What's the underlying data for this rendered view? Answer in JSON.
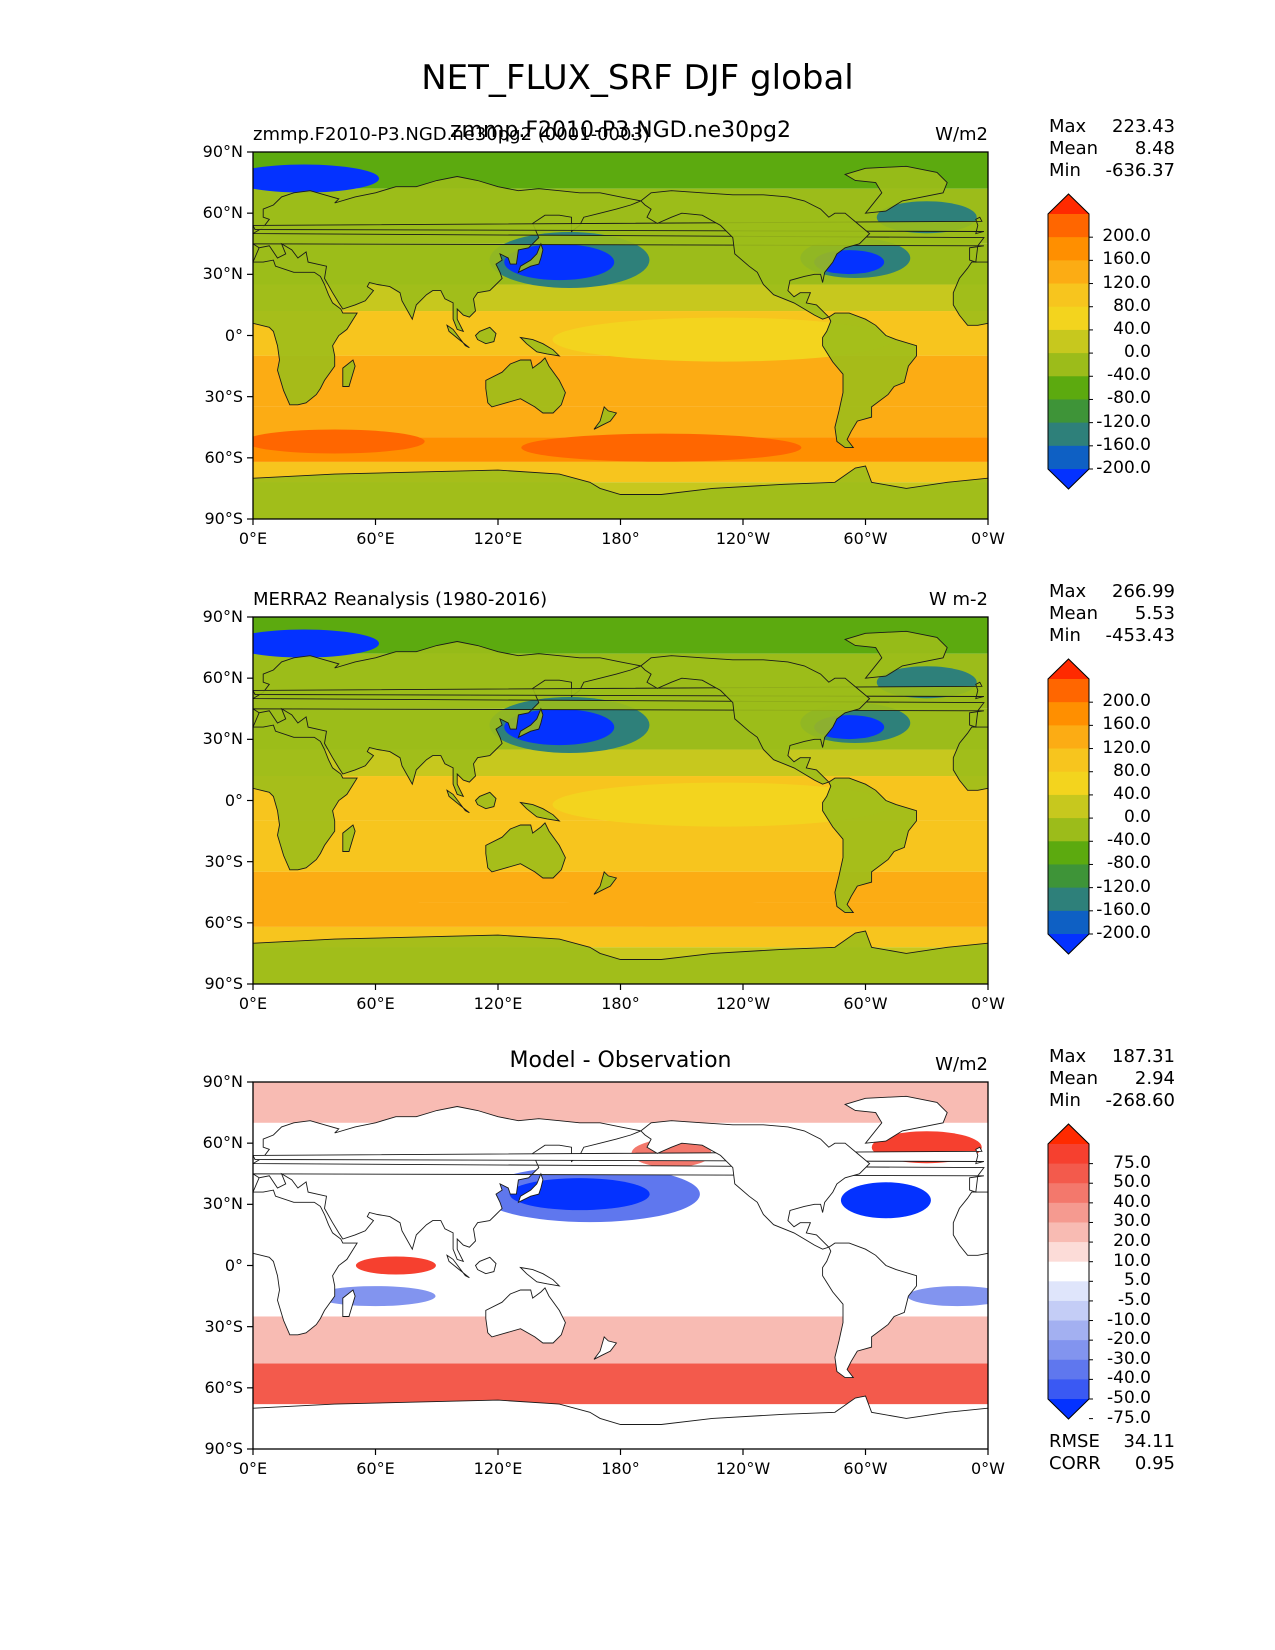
{
  "title": "NET_FLUX_SRF DJF global",
  "x_ticks": [
    "0°E",
    "60°E",
    "120°E",
    "180°",
    "120°W",
    "60°W",
    "0°W"
  ],
  "y_ticks": [
    "90°N",
    "60°N",
    "30°N",
    "0°",
    "30°S",
    "60°S",
    "90°S"
  ],
  "panels": [
    {
      "id": "test",
      "title_left": "zmmp.F2010-P3.NGD.ne30pg2 (0001-0003)",
      "title_center": "zmmp.F2010-P3.NGD.ne30pg2",
      "units": "W/m2",
      "stats": {
        "max_label": "Max",
        "max": "223.43",
        "mean_label": "Mean",
        "mean": "8.48",
        "min_label": "Min",
        "min": "-636.37"
      },
      "colorbar": {
        "labels": [
          "200.0",
          "160.0",
          "120.0",
          "80.0",
          "40.0",
          "0.0",
          "-40.0",
          "-80.0",
          "-120.0",
          "-160.0",
          "-200.0"
        ],
        "colors": [
          "#ff2a00",
          "#ff6600",
          "#ff8f00",
          "#fcac14",
          "#f7c51e",
          "#f3d41e",
          "#c7c81e",
          "#9cbc1a",
          "#5caa0f",
          "#3e9438",
          "#2e807a",
          "#0e60c4",
          "#0432ff"
        ]
      }
    },
    {
      "id": "reference",
      "title_left": "MERRA2 Reanalysis (1980-2016)",
      "title_center": "",
      "units": "W m-2",
      "stats": {
        "max_label": "Max",
        "max": "266.99",
        "mean_label": "Mean",
        "mean": "5.53",
        "min_label": "Min",
        "min": "-453.43"
      },
      "colorbar": {
        "labels": [
          "200.0",
          "160.0",
          "120.0",
          "80.0",
          "40.0",
          "0.0",
          "-40.0",
          "-80.0",
          "-120.0",
          "-160.0",
          "-200.0"
        ],
        "colors": [
          "#ff2a00",
          "#ff6600",
          "#ff8f00",
          "#fcac14",
          "#f7c51e",
          "#f3d41e",
          "#c7c81e",
          "#9cbc1a",
          "#5caa0f",
          "#3e9438",
          "#2e807a",
          "#0e60c4",
          "#0432ff"
        ]
      }
    },
    {
      "id": "difference",
      "title_left": "",
      "title_center": "Model - Observation",
      "units": "W/m2",
      "stats": {
        "max_label": "Max",
        "max": "187.31",
        "mean_label": "Mean",
        "mean": "2.94",
        "min_label": "Min",
        "min": "-268.60"
      },
      "extra_stats": {
        "rmse_label": "RMSE",
        "rmse": "34.11",
        "corr_label": "CORR",
        "corr": "0.95"
      },
      "colorbar": {
        "labels": [
          "75.0",
          "50.0",
          "40.0",
          "30.0",
          "20.0",
          "10.0",
          "5.0",
          "-5.0",
          "-10.0",
          "-20.0",
          "-30.0",
          "-40.0",
          "-50.0",
          "-75.0"
        ],
        "colors": [
          "#ff2a00",
          "#f6402f",
          "#f35a4c",
          "#f3786c",
          "#f59a90",
          "#f8bbb3",
          "#fcdcd8",
          "#ffffff",
          "#dfe5fb",
          "#c4cdf6",
          "#a3b0f1",
          "#8294ef",
          "#5f77ee",
          "#3a59f3",
          "#0432ff"
        ]
      }
    }
  ]
}
